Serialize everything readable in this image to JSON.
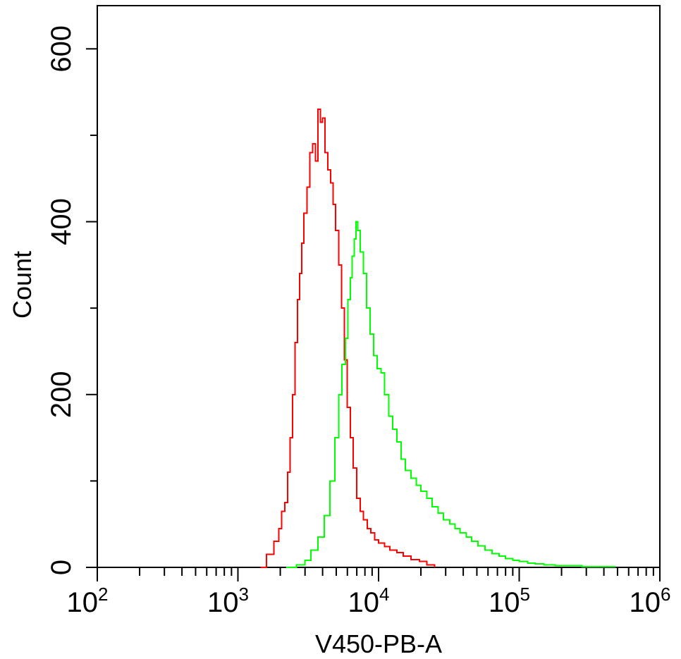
{
  "chart_data": {
    "type": "histogram",
    "xscale": "log",
    "xlabel": "V450-PB-A",
    "ylabel": "Count",
    "xlim": [
      100,
      1000000
    ],
    "ylim": [
      0,
      650
    ],
    "x_ticks": [
      {
        "base": "10",
        "exp": "2",
        "value": 100
      },
      {
        "base": "10",
        "exp": "3",
        "value": 1000
      },
      {
        "base": "10",
        "exp": "4",
        "value": 10000
      },
      {
        "base": "10",
        "exp": "5",
        "value": 100000
      },
      {
        "base": "10",
        "exp": "6",
        "value": 1000000
      }
    ],
    "y_ticks": [
      {
        "label": "0",
        "value": 0
      },
      {
        "label": "200",
        "value": 200
      },
      {
        "label": "400",
        "value": 400
      },
      {
        "label": "600",
        "value": 600
      }
    ],
    "series": [
      {
        "name": "red",
        "color": "#ff0000",
        "points": [
          [
            1450,
            0
          ],
          [
            1600,
            15
          ],
          [
            1800,
            30
          ],
          [
            1950,
            45
          ],
          [
            2050,
            65
          ],
          [
            2150,
            75
          ],
          [
            2250,
            110
          ],
          [
            2350,
            150
          ],
          [
            2450,
            200
          ],
          [
            2550,
            260
          ],
          [
            2650,
            310
          ],
          [
            2750,
            340
          ],
          [
            2850,
            375
          ],
          [
            2950,
            410
          ],
          [
            3100,
            440
          ],
          [
            3250,
            480
          ],
          [
            3400,
            490
          ],
          [
            3550,
            470
          ],
          [
            3700,
            530
          ],
          [
            3850,
            515
          ],
          [
            4000,
            520
          ],
          [
            4150,
            480
          ],
          [
            4350,
            460
          ],
          [
            4550,
            445
          ],
          [
            4750,
            420
          ],
          [
            4950,
            390
          ],
          [
            5200,
            350
          ],
          [
            5450,
            300
          ],
          [
            5700,
            240
          ],
          [
            6000,
            185
          ],
          [
            6300,
            150
          ],
          [
            6600,
            115
          ],
          [
            7000,
            80
          ],
          [
            7400,
            65
          ],
          [
            7800,
            55
          ],
          [
            8300,
            45
          ],
          [
            8800,
            40
          ],
          [
            9400,
            32
          ],
          [
            10000,
            28
          ],
          [
            11000,
            24
          ],
          [
            12000,
            20
          ],
          [
            13500,
            17
          ],
          [
            15000,
            13
          ],
          [
            17000,
            9
          ],
          [
            19500,
            7
          ],
          [
            22000,
            3
          ],
          [
            25000,
            0
          ]
        ]
      },
      {
        "name": "green",
        "color": "#00ff00",
        "points": [
          [
            2200,
            0
          ],
          [
            2600,
            3
          ],
          [
            3000,
            8
          ],
          [
            3300,
            20
          ],
          [
            3700,
            35
          ],
          [
            4100,
            60
          ],
          [
            4500,
            100
          ],
          [
            4900,
            150
          ],
          [
            5200,
            200
          ],
          [
            5500,
            235
          ],
          [
            5800,
            265
          ],
          [
            6050,
            310
          ],
          [
            6300,
            335
          ],
          [
            6500,
            360
          ],
          [
            6700,
            380
          ],
          [
            6900,
            400
          ],
          [
            7100,
            390
          ],
          [
            7400,
            365
          ],
          [
            7800,
            340
          ],
          [
            8200,
            300
          ],
          [
            8700,
            270
          ],
          [
            9200,
            245
          ],
          [
            9800,
            230
          ],
          [
            10400,
            225
          ],
          [
            11000,
            200
          ],
          [
            11800,
            175
          ],
          [
            12600,
            160
          ],
          [
            13500,
            145
          ],
          [
            14500,
            125
          ],
          [
            15500,
            112
          ],
          [
            17000,
            103
          ],
          [
            18500,
            95
          ],
          [
            20000,
            88
          ],
          [
            22000,
            80
          ],
          [
            24000,
            70
          ],
          [
            26500,
            63
          ],
          [
            29000,
            55
          ],
          [
            32000,
            50
          ],
          [
            35000,
            45
          ],
          [
            38000,
            40
          ],
          [
            42000,
            35
          ],
          [
            46000,
            30
          ],
          [
            51000,
            25
          ],
          [
            57000,
            20
          ],
          [
            64000,
            16
          ],
          [
            72000,
            13
          ],
          [
            80000,
            10
          ],
          [
            90000,
            8
          ],
          [
            100000,
            7
          ],
          [
            115000,
            5
          ],
          [
            130000,
            4
          ],
          [
            150000,
            3
          ],
          [
            180000,
            2
          ],
          [
            220000,
            2
          ],
          [
            280000,
            1
          ],
          [
            350000,
            1
          ],
          [
            420000,
            1
          ],
          [
            480000,
            0
          ]
        ]
      }
    ]
  }
}
